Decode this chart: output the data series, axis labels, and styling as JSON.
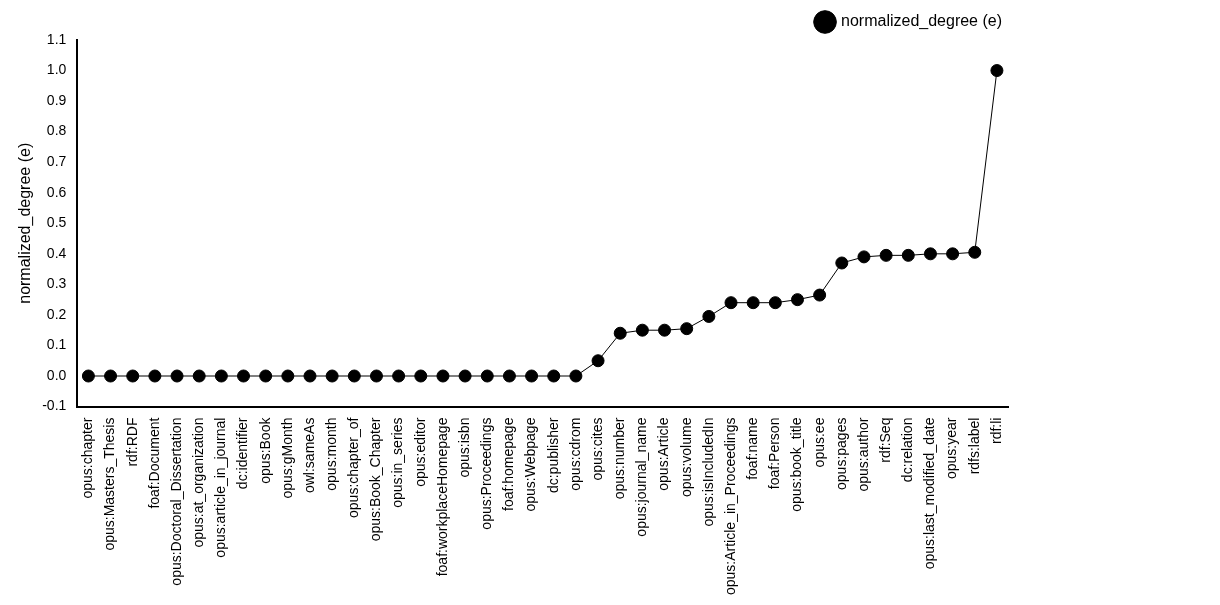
{
  "chart_data": {
    "type": "line",
    "ylabel": "normalized_degree (e)",
    "categories": [
      "opus:chapter",
      "opus:Masters_Thesis",
      "rdf:RDF",
      "foaf:Document",
      "opus:Doctoral_Dissertation",
      "opus:at_organization",
      "opus:article_in_journal",
      "dc:identifier",
      "opus:Book",
      "opus:gMonth",
      "owl:sameAs",
      "opus:month",
      "opus:chapter_of",
      "opus:Book_Chapter",
      "opus:in_series",
      "opus:editor",
      "foaf:workplaceHomepage",
      "opus:isbn",
      "opus:Proceedings",
      "foaf:homepage",
      "opus:Webpage",
      "dc:publisher",
      "opus:cdrom",
      "opus:cites",
      "opus:number",
      "opus:journal_name",
      "opus:Article",
      "opus:volume",
      "opus:isIncludedIn",
      "opus:Article_in_Proceedings",
      "foaf:name",
      "foaf:Person",
      "opus:book_title",
      "opus:ee",
      "opus:pages",
      "opus:author",
      "rdf:Seq",
      "dc:relation",
      "opus:last_modified_date",
      "opus:year",
      "rdfs:label",
      "rdf:li"
    ],
    "series": [
      {
        "name": "normalized_degree (e)",
        "color": "#000000",
        "values": [
          0,
          0,
          0,
          0,
          0,
          0,
          0,
          0,
          0,
          0,
          0,
          0,
          0,
          0,
          0,
          0,
          0,
          0,
          0,
          0,
          0,
          0,
          0,
          0.05,
          0.14,
          0.15,
          0.15,
          0.155,
          0.195,
          0.24,
          0.24,
          0.24,
          0.25,
          0.265,
          0.37,
          0.39,
          0.395,
          0.395,
          0.4,
          0.4,
          0.405,
          1.0
        ]
      }
    ],
    "ylim": [
      -0.1,
      1.1
    ],
    "yticks": [
      -0.1,
      {
        "value": 0,
        "label": "0.0"
      },
      0.1,
      0.2,
      0.3,
      0.4,
      0.5,
      0.6,
      0.7,
      0.8,
      0.9,
      {
        "value": 1,
        "label": "1.0"
      },
      1.1
    ],
    "grid": false,
    "legend": "top right",
    "marker": "circle",
    "line_style": "solid"
  }
}
